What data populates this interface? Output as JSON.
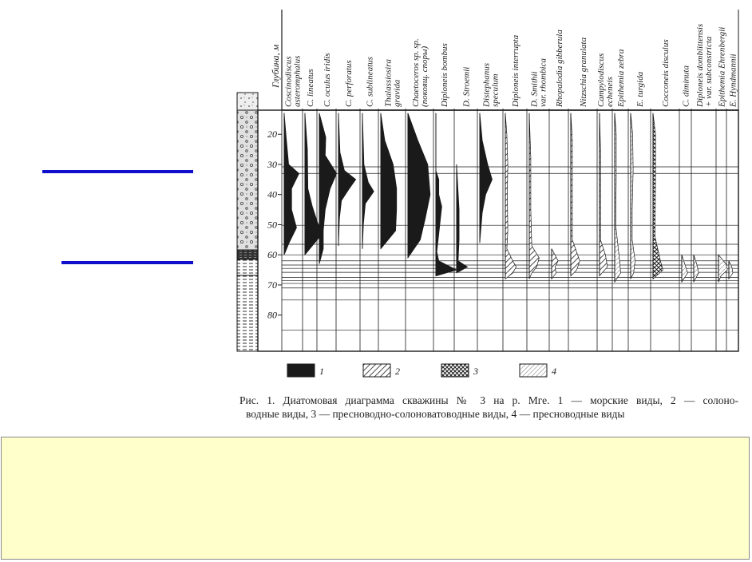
{
  "depth_axis": {
    "title": "Глубина, м",
    "ticks": [
      {
        "depth": 20,
        "label": "20"
      },
      {
        "depth": 30,
        "label": "30"
      },
      {
        "depth": 40,
        "label": "40"
      },
      {
        "depth": 50,
        "label": "50"
      },
      {
        "depth": 60,
        "label": "60"
      },
      {
        "depth": 70,
        "label": "70"
      },
      {
        "depth": 80,
        "label": "80"
      }
    ],
    "range": [
      12,
      92
    ],
    "horizontal_lines": [
      30.8,
      33,
      50.2,
      56.5,
      60,
      62,
      63.4,
      64.5,
      65.8,
      67.5,
      68.5,
      69.5,
      71,
      75,
      85
    ]
  },
  "species_columns": [
    {
      "lines": [
        "Coscinodiscus",
        "asteromphalus"
      ],
      "type": 1,
      "profile": [
        [
          13,
          0
        ],
        [
          21,
          0.4
        ],
        [
          30,
          0.9
        ],
        [
          33,
          3
        ],
        [
          38,
          1.5
        ],
        [
          45,
          1.5
        ],
        [
          51,
          2.5
        ],
        [
          56,
          1
        ],
        [
          60,
          0
        ]
      ]
    },
    {
      "lines": [
        "C. lineatus"
      ],
      "type": 1,
      "profile": [
        [
          13,
          0
        ],
        [
          25,
          0.5
        ],
        [
          38,
          0.6
        ],
        [
          44,
          1.5
        ],
        [
          49,
          2.5
        ],
        [
          53,
          3.5
        ],
        [
          60,
          0
        ]
      ]
    },
    {
      "lines": [
        "C. oculus iridis"
      ],
      "type": 1,
      "profile": [
        [
          13,
          0
        ],
        [
          21,
          1.3
        ],
        [
          27,
          1.2
        ],
        [
          33,
          3.5
        ],
        [
          38,
          2.2
        ],
        [
          45,
          1.2
        ],
        [
          52,
          0.8
        ],
        [
          58,
          0.8
        ],
        [
          63,
          0
        ]
      ]
    },
    {
      "lines": [
        "C. perforatus"
      ],
      "type": 1,
      "profile": [
        [
          13,
          0
        ],
        [
          26,
          0.3
        ],
        [
          32,
          1.2
        ],
        [
          35,
          3.5
        ],
        [
          38,
          2.2
        ],
        [
          42,
          0.6
        ],
        [
          48,
          0.2
        ],
        [
          57,
          0
        ]
      ]
    },
    {
      "lines": [
        "C. sublineatus"
      ],
      "type": 1,
      "profile": [
        [
          13,
          0
        ],
        [
          30,
          0.3
        ],
        [
          36,
          1.2
        ],
        [
          39,
          2.3
        ],
        [
          43,
          0.6
        ],
        [
          50,
          0.2
        ],
        [
          58,
          0
        ]
      ]
    },
    {
      "lines": [
        "Thalassiosira",
        "gravida"
      ],
      "type": 1,
      "profile": [
        [
          13,
          0
        ],
        [
          22,
          0.8
        ],
        [
          30,
          2.5
        ],
        [
          38,
          3.2
        ],
        [
          45,
          3.2
        ],
        [
          52,
          3
        ],
        [
          58,
          0
        ]
      ]
    },
    {
      "lines": [
        "Chaetoceros sp. sp.",
        "(покоящ. споры)"
      ],
      "type": 1,
      "profile": [
        [
          13,
          0
        ],
        [
          22,
          2
        ],
        [
          30,
          4
        ],
        [
          40,
          4.5
        ],
        [
          48,
          3.5
        ],
        [
          55,
          2.5
        ],
        [
          61,
          0
        ]
      ]
    },
    {
      "lines": [
        "Diploneis bombus"
      ],
      "type": 1,
      "profile": [
        [
          13,
          0
        ],
        [
          32,
          0
        ],
        [
          35,
          0.6
        ],
        [
          40,
          0.6
        ],
        [
          44,
          1.2
        ],
        [
          53,
          0.6
        ],
        [
          59,
          0.2
        ],
        [
          62,
          0.6
        ],
        [
          65,
          4.2
        ],
        [
          67,
          0
        ]
      ]
    },
    {
      "lines": [
        "D. Stroemii"
      ],
      "type": 1,
      "profile": [
        [
          30,
          0
        ],
        [
          36,
          0.2
        ],
        [
          45,
          0.5
        ],
        [
          55,
          0.5
        ],
        [
          62,
          0.3
        ],
        [
          64,
          2.2
        ],
        [
          66,
          0
        ]
      ]
    },
    {
      "lines": [
        "Distephanus",
        "speculum"
      ],
      "type": 1,
      "profile": [
        [
          13,
          0
        ],
        [
          22,
          0.5
        ],
        [
          30,
          1.6
        ],
        [
          35,
          2.5
        ],
        [
          40,
          1.2
        ],
        [
          46,
          0.5
        ],
        [
          56,
          0
        ]
      ]
    },
    {
      "lines": [
        "Diploneis interrupta"
      ],
      "type": 2,
      "profile": [
        [
          13,
          0
        ],
        [
          20,
          0.3
        ],
        [
          30,
          0.5
        ],
        [
          40,
          0.4
        ],
        [
          52,
          0.5
        ],
        [
          58,
          0.3
        ],
        [
          62,
          1.5
        ],
        [
          64,
          2.2
        ],
        [
          66,
          1.5
        ],
        [
          68,
          0
        ]
      ]
    },
    {
      "lines": [
        "D. Smithii",
        "var. rhombica"
      ],
      "type": 2,
      "profile": [
        [
          13,
          0
        ],
        [
          28,
          0.3
        ],
        [
          45,
          0.3
        ],
        [
          57,
          0.5
        ],
        [
          61,
          2
        ],
        [
          64,
          1.5
        ],
        [
          66,
          0.5
        ],
        [
          68,
          0
        ]
      ]
    },
    {
      "lines": [
        "Rhopalodia gibberula"
      ],
      "type": 2,
      "profile": [
        [
          58,
          0
        ],
        [
          62,
          1.3
        ],
        [
          64,
          0.7
        ],
        [
          66,
          0.9
        ],
        [
          68,
          0
        ]
      ]
    },
    {
      "lines": [
        "Nitzschia granulata"
      ],
      "type": 2,
      "profile": [
        [
          13,
          0
        ],
        [
          22,
          0.3
        ],
        [
          35,
          0.3
        ],
        [
          55,
          0.3
        ],
        [
          62,
          1.8
        ],
        [
          65,
          1.2
        ],
        [
          67,
          0
        ]
      ]
    },
    {
      "lines": [
        "Campylodiscus",
        "echeneis"
      ],
      "type": 2,
      "profile": [
        [
          13,
          0
        ],
        [
          25,
          0.2
        ],
        [
          55,
          0.2
        ],
        [
          60,
          1.2
        ],
        [
          64,
          1.6
        ],
        [
          66,
          0.5
        ],
        [
          67,
          0
        ]
      ]
    },
    {
      "lines": [
        "Epithemia zebra"
      ],
      "type": 4,
      "profile": [
        [
          13,
          0
        ],
        [
          20,
          0.3
        ],
        [
          35,
          0.3
        ],
        [
          50,
          0.2
        ],
        [
          62,
          1
        ],
        [
          66,
          1.2
        ],
        [
          69,
          0
        ]
      ]
    },
    {
      "lines": [
        "E. turgida"
      ],
      "type": 4,
      "profile": [
        [
          13,
          0
        ],
        [
          20,
          0.4
        ],
        [
          32,
          0.5
        ],
        [
          45,
          0.3
        ],
        [
          55,
          0.3
        ],
        [
          62,
          0.9
        ],
        [
          66,
          0.6
        ],
        [
          68,
          0
        ]
      ]
    },
    {
      "lines": [
        "Cocconeis disculus"
      ],
      "type": 3,
      "profile": [
        [
          13,
          0
        ],
        [
          20,
          0.5
        ],
        [
          34,
          0.5
        ],
        [
          54,
          0.4
        ],
        [
          62,
          1.5
        ],
        [
          65,
          2
        ],
        [
          68,
          0
        ]
      ]
    },
    {
      "lines": [
        "C. diminuta"
      ],
      "type": 4,
      "profile": [
        [
          60,
          0
        ],
        [
          64,
          0.8
        ],
        [
          66,
          1.2
        ],
        [
          69,
          0
        ]
      ]
    },
    {
      "lines": [
        "Diploneis domblittensis",
        "+ var. subconstricta"
      ],
      "type": 4,
      "profile": [
        [
          60,
          0
        ],
        [
          63,
          0.6
        ],
        [
          66,
          1
        ],
        [
          69,
          0
        ]
      ]
    },
    {
      "lines": [
        "Epithemia Ehrenbergii"
      ],
      "type": 4,
      "profile": [
        [
          60,
          0
        ],
        [
          63,
          1.5
        ],
        [
          65,
          1.8
        ],
        [
          67,
          0.5
        ],
        [
          69,
          0
        ]
      ]
    },
    {
      "lines": [
        "E. Hyndmannii"
      ],
      "type": 4,
      "profile": [
        [
          62,
          0
        ],
        [
          64,
          0.6
        ],
        [
          66,
          0.8
        ],
        [
          68,
          0
        ]
      ]
    }
  ],
  "legend": [
    {
      "pattern": 1,
      "label": "1"
    },
    {
      "pattern": 2,
      "label": "2"
    },
    {
      "pattern": 3,
      "label": "3"
    },
    {
      "pattern": 4,
      "label": "4"
    }
  ],
  "caption": {
    "line1": "Рис. 1. Диатомовая диаграмма скважины № 3 на р. Мге. 1 — морские виды, 2 — солоно-",
    "line2": "водные виды, 3 — пресноводно-солоноватоводные виды, 4 — пресноводные виды"
  },
  "note": {
    "text": ""
  },
  "colors": {
    "ink": "#1a1a1a",
    "accent_line": "#1010cc",
    "note_bg": "#ffffcc"
  }
}
